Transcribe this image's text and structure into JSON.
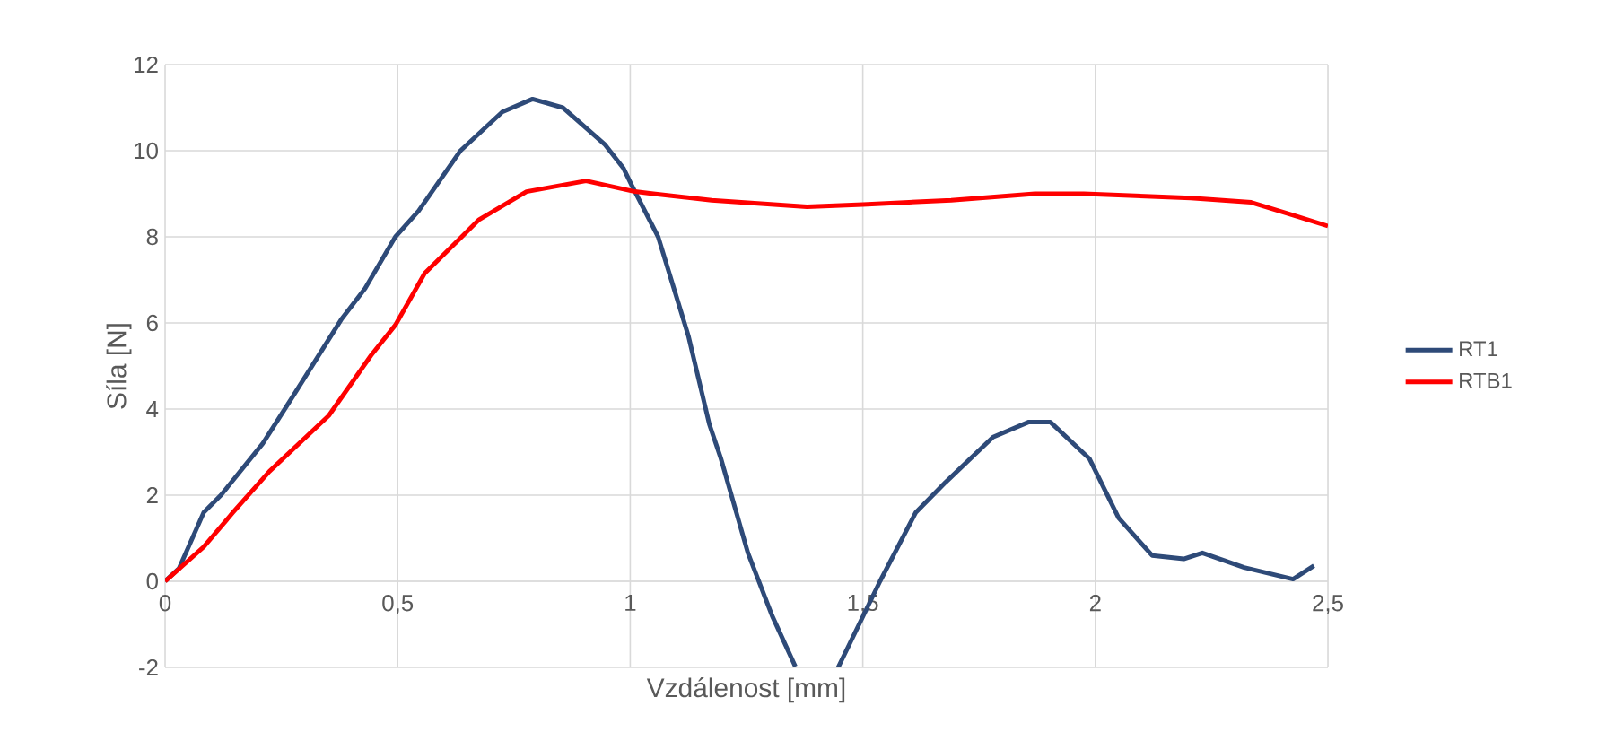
{
  "chart_data": {
    "type": "line",
    "xlabel": "Vzdálenost [mm]",
    "ylabel": "Síla [N]",
    "xlim": [
      0,
      2.5
    ],
    "ylim": [
      -2,
      12
    ],
    "xticks": [
      0,
      {
        "value": 0.5,
        "label": "0,5"
      },
      1,
      {
        "value": 1.5,
        "label": "1,5"
      },
      2,
      {
        "value": 2.5,
        "label": "2,5"
      }
    ],
    "yticks": [
      -2,
      0,
      2,
      4,
      6,
      8,
      10,
      12
    ],
    "grid": true,
    "legend": "right",
    "marker": "none",
    "line_style": "solid",
    "series": [
      {
        "name": "RT1",
        "color": "#2e4a78",
        "x": [
          0,
          0.03,
          0.083,
          0.12,
          0.21,
          0.275,
          0.38,
          0.43,
          0.495,
          0.545,
          0.635,
          0.725,
          0.79,
          0.855,
          0.945,
          0.985,
          1.003,
          1.06,
          1.125,
          1.17,
          1.195,
          1.253,
          1.305,
          1.355,
          1.4,
          1.447,
          1.537,
          1.614,
          1.678,
          1.78,
          1.857,
          1.903,
          1.987,
          2.05,
          2.122,
          2.19,
          2.23,
          2.32,
          2.425,
          2.47
        ],
        "values": [
          0,
          0.3,
          1.6,
          2.0,
          3.2,
          4.3,
          6.1,
          6.8,
          8.0,
          8.6,
          10.0,
          10.9,
          11.2,
          11.0,
          10.15,
          9.6,
          9.2,
          8.0,
          5.7,
          3.65,
          2.85,
          0.66,
          -0.8,
          -1.98,
          null,
          -2,
          0,
          1.6,
          2.3,
          3.35,
          3.7,
          3.7,
          2.85,
          1.47,
          0.6,
          0.52,
          0.66,
          0.32,
          0.05,
          0.36
        ]
      },
      {
        "name": "RTB1",
        "color": "#ff0000",
        "x": [
          0,
          0.083,
          0.146,
          0.224,
          0.352,
          0.443,
          0.495,
          0.558,
          0.675,
          0.777,
          0.905,
          1.01,
          1.05,
          1.175,
          1.38,
          1.5,
          1.69,
          1.87,
          1.975,
          2.205,
          2.335,
          2.425,
          2.5
        ],
        "values": [
          0,
          0.8,
          1.6,
          2.55,
          3.85,
          5.25,
          5.95,
          7.15,
          8.4,
          9.05,
          9.3,
          9.05,
          9.0,
          8.85,
          8.7,
          8.75,
          8.85,
          9.0,
          9.0,
          8.9,
          8.8,
          8.5,
          8.25
        ]
      }
    ]
  }
}
